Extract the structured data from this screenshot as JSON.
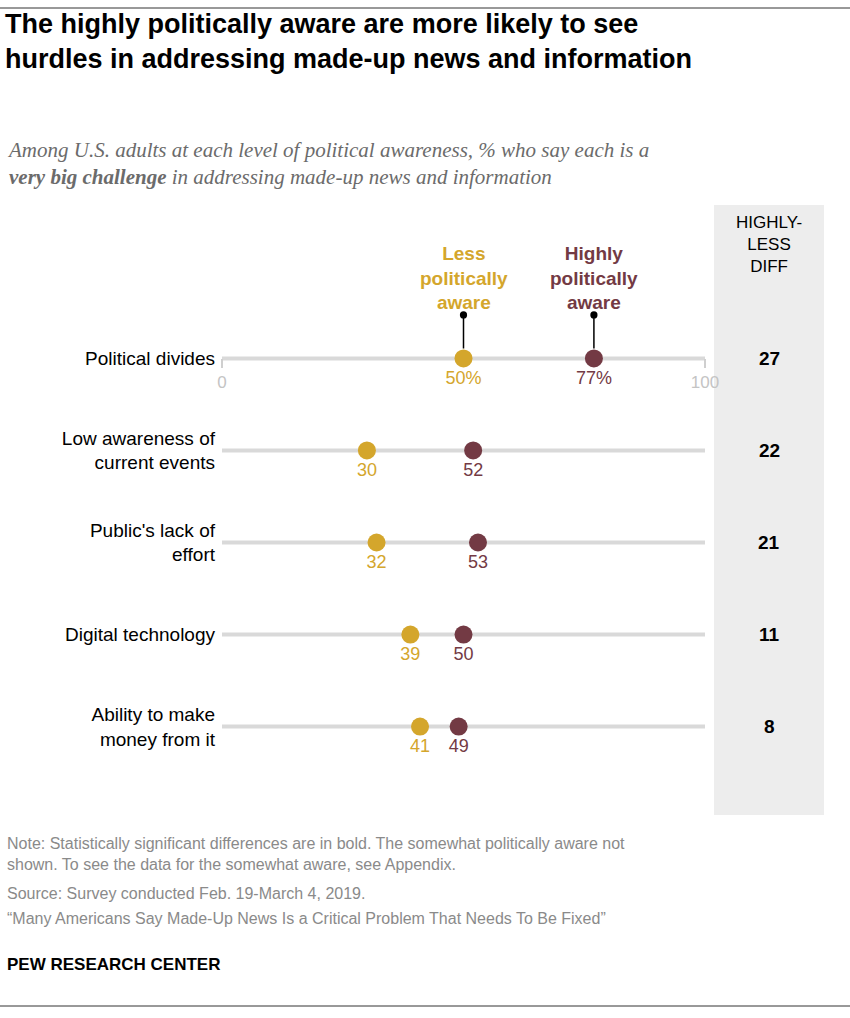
{
  "chart_data": {
    "type": "dot",
    "title": "The highly politically aware are more likely to see\nhurdles in addressing made-up news and information",
    "subtitle": [
      "Among U.S. adults at each level of political awareness, % who say each is a",
      "very big challenge",
      "in addressing made-up news and information"
    ],
    "categories": [
      "Political divides",
      "Low awareness of\ncurrent events",
      "Public's lack of\neffort",
      "Digital technology",
      "Ability to make\nmoney from it"
    ],
    "series": [
      {
        "name": "Less\npolitically\naware",
        "color": "#d4a62c",
        "values": [
          50,
          30,
          32,
          39,
          41
        ],
        "value_labels": [
          "50%",
          "30",
          "32",
          "39",
          "41"
        ]
      },
      {
        "name": "Highly\npolitically\naware",
        "color": "#733a44",
        "values": [
          77,
          52,
          53,
          50,
          49
        ],
        "value_labels": [
          "77%",
          "52",
          "53",
          "50",
          "49"
        ]
      }
    ],
    "difference_header": "HIGHLY-\nLESS\nDIFF",
    "differences": [
      27,
      22,
      21,
      11,
      8
    ],
    "xlim": [
      0,
      100
    ],
    "xticks": [
      0,
      100
    ],
    "grid": false,
    "data_labels": true,
    "orientation": "horizontal",
    "note": "Note: Statistically significant differences are in bold. The somewhat politically aware not\nshown. To see the data for the somewhat aware, see Appendix.",
    "source": "Source: Survey conducted Feb. 19-March 4, 2019.",
    "report": "“Many Americans Say Made-Up News Is a Critical Problem That Needs To Be Fixed”",
    "credit": "PEW RESEARCH CENTER"
  }
}
